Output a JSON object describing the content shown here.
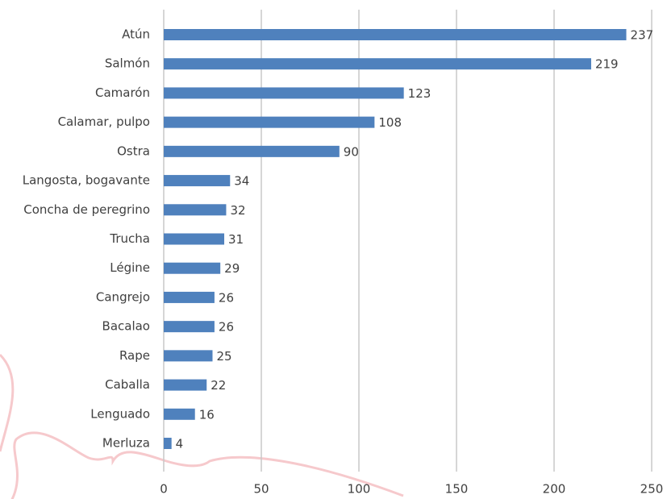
{
  "chart_data": {
    "type": "bar",
    "orientation": "horizontal",
    "categories": [
      "Atún",
      "Salmón",
      "Camarón",
      "Calamar, pulpo",
      "Ostra",
      "Langosta, bogavante",
      "Concha de peregrino",
      "Trucha",
      "Légine",
      "Cangrejo",
      "Bacalao",
      "Rape",
      "Caballa",
      "Lenguado",
      "Merluza"
    ],
    "values": [
      237,
      219,
      123,
      108,
      90,
      34,
      32,
      31,
      29,
      26,
      26,
      25,
      22,
      16,
      4
    ],
    "color": "#4f81bd",
    "xlim": [
      0,
      250
    ],
    "xticks": [
      0,
      50,
      100,
      150,
      200,
      250
    ],
    "grid": true
  }
}
